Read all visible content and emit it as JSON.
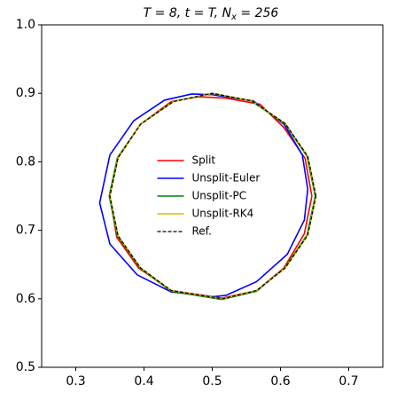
{
  "chart_data": {
    "type": "line",
    "title": [
      "T = 8, t = T, N",
      "x",
      " = 256"
    ],
    "xlim": [
      0.25,
      0.75
    ],
    "ylim": [
      0.5,
      1.0
    ],
    "xticks": [
      0.3,
      0.4,
      0.5,
      0.6,
      0.7
    ],
    "yticks": [
      0.5,
      0.6,
      0.7,
      0.8,
      0.9,
      {
        "value": 1.0,
        "label": "1.0"
      }
    ],
    "legend": "center",
    "series": [
      {
        "name": "Split",
        "color": "#ff0000",
        "style": "solid",
        "x": [
          0.646,
          0.636,
          0.605,
          0.57,
          0.52,
          0.48,
          0.44,
          0.395,
          0.362,
          0.35,
          0.36,
          0.392,
          0.44,
          0.515,
          0.565,
          0.605,
          0.635,
          0.646
        ],
        "values": [
          0.75,
          0.805,
          0.85,
          0.884,
          0.893,
          0.895,
          0.888,
          0.855,
          0.806,
          0.75,
          0.69,
          0.645,
          0.612,
          0.601,
          0.612,
          0.645,
          0.695,
          0.75
        ]
      },
      {
        "name": "Unsplit-Euler",
        "color": "#0000ff",
        "style": "solid",
        "x": [
          0.64,
          0.632,
          0.605,
          0.56,
          0.5,
          0.47,
          0.43,
          0.385,
          0.35,
          0.335,
          0.35,
          0.39,
          0.44,
          0.5,
          0.52,
          0.565,
          0.61,
          0.635,
          0.64
        ],
        "values": [
          0.76,
          0.81,
          0.855,
          0.889,
          0.898,
          0.899,
          0.89,
          0.86,
          0.81,
          0.74,
          0.68,
          0.635,
          0.61,
          0.603,
          0.605,
          0.625,
          0.665,
          0.715,
          0.76
        ]
      },
      {
        "name": "Unsplit-PC",
        "color": "#008000",
        "style": "solid",
        "x": [
          0.651,
          0.639,
          0.606,
          0.557,
          0.5,
          0.443,
          0.395,
          0.361,
          0.349,
          0.361,
          0.394,
          0.44,
          0.514,
          0.565,
          0.606,
          0.639,
          0.651
        ],
        "values": [
          0.75,
          0.808,
          0.856,
          0.889,
          0.9,
          0.888,
          0.855,
          0.806,
          0.75,
          0.692,
          0.645,
          0.611,
          0.599,
          0.611,
          0.645,
          0.693,
          0.75
        ]
      },
      {
        "name": "Unsplit-RK4",
        "color": "#d4c200",
        "style": "solid",
        "x": [
          0.652,
          0.64,
          0.607,
          0.558,
          0.5,
          0.443,
          0.395,
          0.362,
          0.35,
          0.362,
          0.395,
          0.44,
          0.515,
          0.565,
          0.607,
          0.64,
          0.652
        ],
        "values": [
          0.75,
          0.808,
          0.856,
          0.889,
          0.9,
          0.888,
          0.855,
          0.806,
          0.75,
          0.692,
          0.645,
          0.612,
          0.6,
          0.612,
          0.645,
          0.693,
          0.75
        ]
      },
      {
        "name": "Ref.",
        "color": "#000000",
        "style": "dashed",
        "x": [
          0.652,
          0.64,
          0.607,
          0.558,
          0.5,
          0.443,
          0.395,
          0.362,
          0.35,
          0.362,
          0.395,
          0.44,
          0.515,
          0.565,
          0.607,
          0.64,
          0.652
        ],
        "values": [
          0.75,
          0.808,
          0.856,
          0.889,
          0.9,
          0.888,
          0.855,
          0.806,
          0.75,
          0.692,
          0.645,
          0.612,
          0.6,
          0.612,
          0.645,
          0.693,
          0.75
        ]
      }
    ]
  }
}
